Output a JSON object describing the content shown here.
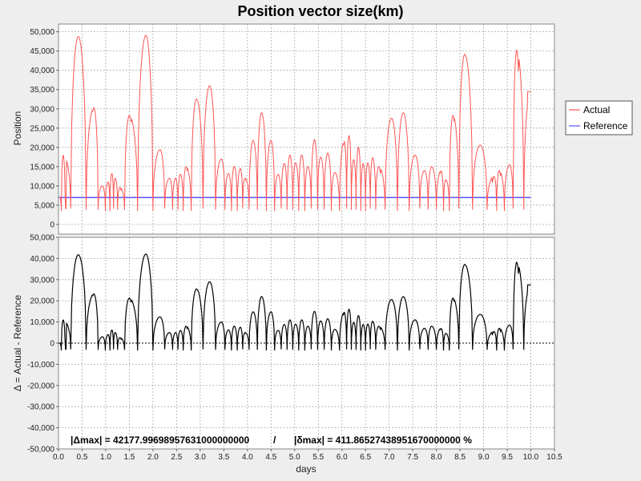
{
  "chart_data": [
    {
      "type": "line",
      "title": "Position vector size(km)",
      "xlabel": "days",
      "ylabel": "Position",
      "xlim": [
        0,
        10.5
      ],
      "ylim": [
        -2500,
        52000
      ],
      "x_ticks": [
        0,
        0.5,
        1,
        1.5,
        2,
        2.5,
        3,
        3.5,
        4,
        4.5,
        5,
        5.5,
        6,
        6.5,
        7,
        7.5,
        8,
        8.5,
        9,
        9.5,
        10,
        10.5
      ],
      "y_ticks": [
        0,
        5000,
        10000,
        15000,
        20000,
        25000,
        30000,
        35000,
        40000,
        45000,
        50000
      ],
      "grid": true,
      "legend_placement": "right",
      "series": [
        {
          "name": "Actual",
          "color": "#ff5555",
          "peaks": [
            [
              0.02,
              7000,
              0.0
            ],
            [
              0.1,
              18000,
              0.25
            ],
            [
              0.42,
              48800,
              0.15
            ],
            [
              0.75,
              30300,
              0.15
            ],
            [
              0.93,
              10000,
              0.25
            ],
            [
              1.05,
              11000,
              0.25
            ],
            [
              1.13,
              13200,
              0.25
            ],
            [
              1.2,
              12000,
              0.25
            ],
            [
              1.3,
              9600,
              0.25
            ],
            [
              1.5,
              28300,
              0.15
            ],
            [
              1.85,
              49100,
              0.15
            ],
            [
              2.15,
              19400,
              0.2
            ],
            [
              2.35,
              12000,
              0.2
            ],
            [
              2.48,
              12000,
              0.25
            ],
            [
              2.58,
              13000,
              0.2
            ],
            [
              2.7,
              15000,
              0.2
            ],
            [
              2.92,
              32600,
              0.15
            ],
            [
              3.2,
              36000,
              0.15
            ],
            [
              3.45,
              17000,
              0.2
            ],
            [
              3.6,
              13200,
              0.25
            ],
            [
              3.72,
              15000,
              0.2
            ],
            [
              3.85,
              14500,
              0.2
            ],
            [
              3.95,
              12000,
              0.25
            ],
            [
              4.12,
              21800,
              0.2
            ],
            [
              4.3,
              29000,
              0.2
            ],
            [
              4.5,
              21800,
              0.2
            ],
            [
              4.65,
              13000,
              0.2
            ],
            [
              4.78,
              15800,
              0.2
            ],
            [
              4.9,
              18000,
              0.2
            ],
            [
              5.02,
              16000,
              0.2
            ],
            [
              5.15,
              18000,
              0.2
            ],
            [
              5.28,
              15000,
              0.2
            ],
            [
              5.42,
              22000,
              0.2
            ],
            [
              5.55,
              17500,
              0.2
            ],
            [
              5.7,
              18500,
              0.2
            ],
            [
              5.85,
              13500,
              0.2
            ],
            [
              6.05,
              21500,
              0.2
            ],
            [
              6.15,
              23000,
              0.2
            ],
            [
              6.25,
              16800,
              0.2
            ],
            [
              6.35,
              20000,
              0.2
            ],
            [
              6.45,
              15800,
              0.2
            ],
            [
              6.55,
              16000,
              0.2
            ],
            [
              6.65,
              17300,
              0.2
            ],
            [
              6.78,
              15000,
              0.2
            ],
            [
              7.05,
              27600,
              0.15
            ],
            [
              7.3,
              29000,
              0.15
            ],
            [
              7.55,
              18000,
              0.2
            ],
            [
              7.75,
              14000,
              0.2
            ],
            [
              7.9,
              15000,
              0.2
            ],
            [
              8.1,
              13900,
              0.2
            ],
            [
              8.2,
              11600,
              0.25
            ],
            [
              8.35,
              28300,
              0.2
            ],
            [
              8.6,
              44200,
              0.15
            ],
            [
              8.93,
              20600,
              0.2
            ],
            [
              9.22,
              12500,
              0.25
            ],
            [
              9.33,
              14000,
              0.25
            ],
            [
              9.55,
              15500,
              0.2
            ],
            [
              9.7,
              45200,
              0.15
            ],
            [
              10.0,
              34500,
              0.15
            ]
          ]
        },
        {
          "name": "Reference",
          "color": "#5555ff",
          "x": [
            0,
            10.0
          ],
          "values": [
            7000,
            7000
          ]
        }
      ]
    },
    {
      "type": "line",
      "xlabel": "days",
      "ylabel": "Δ = Actual - Reference",
      "xlim": [
        0,
        10.5
      ],
      "ylim": [
        -50000,
        50000
      ],
      "x_ticks": [
        0,
        0.5,
        1,
        1.5,
        2,
        2.5,
        3,
        3.5,
        4,
        4.5,
        5,
        5.5,
        6,
        6.5,
        7,
        7.5,
        8,
        8.5,
        9,
        9.5,
        10,
        10.5
      ],
      "y_ticks": [
        -50000,
        -40000,
        -30000,
        -20000,
        -10000,
        0,
        10000,
        20000,
        30000,
        40000,
        50000
      ],
      "grid": true,
      "zero_line": 0,
      "series": [
        {
          "color": "#000000",
          "derived_from": "Actual - Reference"
        }
      ],
      "annotation": {
        "delta_max": "|Δmax| = 42177.99698957631000000000",
        "separator": "/",
        "rel_max": "|δmax| = 411.86527438951670000000 %"
      }
    }
  ]
}
